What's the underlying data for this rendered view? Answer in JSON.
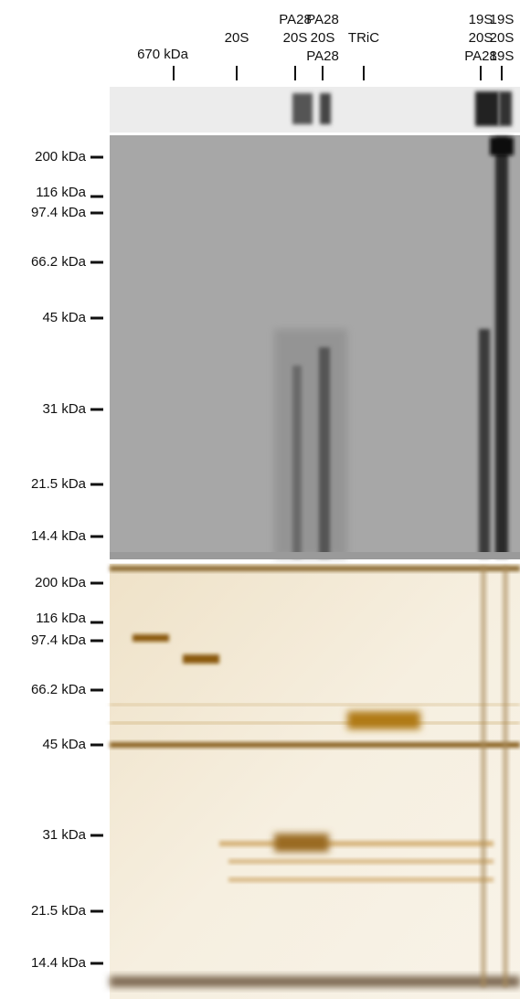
{
  "lane_labels": [
    {
      "lines": [
        "670 kDa"
      ]
    },
    {
      "lines": [
        "20S"
      ]
    },
    {
      "lines": [
        "PA28",
        "20S"
      ]
    },
    {
      "lines": [
        "PA28",
        "20S",
        "PA28"
      ]
    },
    {
      "lines": [
        "TRiC"
      ]
    },
    {
      "lines": [
        "19S",
        "20S",
        "PA28"
      ]
    },
    {
      "lines": [
        "19S",
        "20S",
        "19S"
      ]
    }
  ],
  "panels": [
    {
      "markers": [
        "200 kDa",
        "116 kDa",
        "97.4 kDa",
        "66.2 kDa",
        "45 kDa",
        "31 kDa",
        "21.5 kDa",
        "14.4 kDa"
      ]
    },
    {
      "markers": [
        "200 kDa",
        "116 kDa",
        "97.4 kDa",
        "66.2 kDa",
        "45 kDa",
        "31 kDa",
        "21.5 kDa",
        "14.4 kDa"
      ]
    }
  ]
}
